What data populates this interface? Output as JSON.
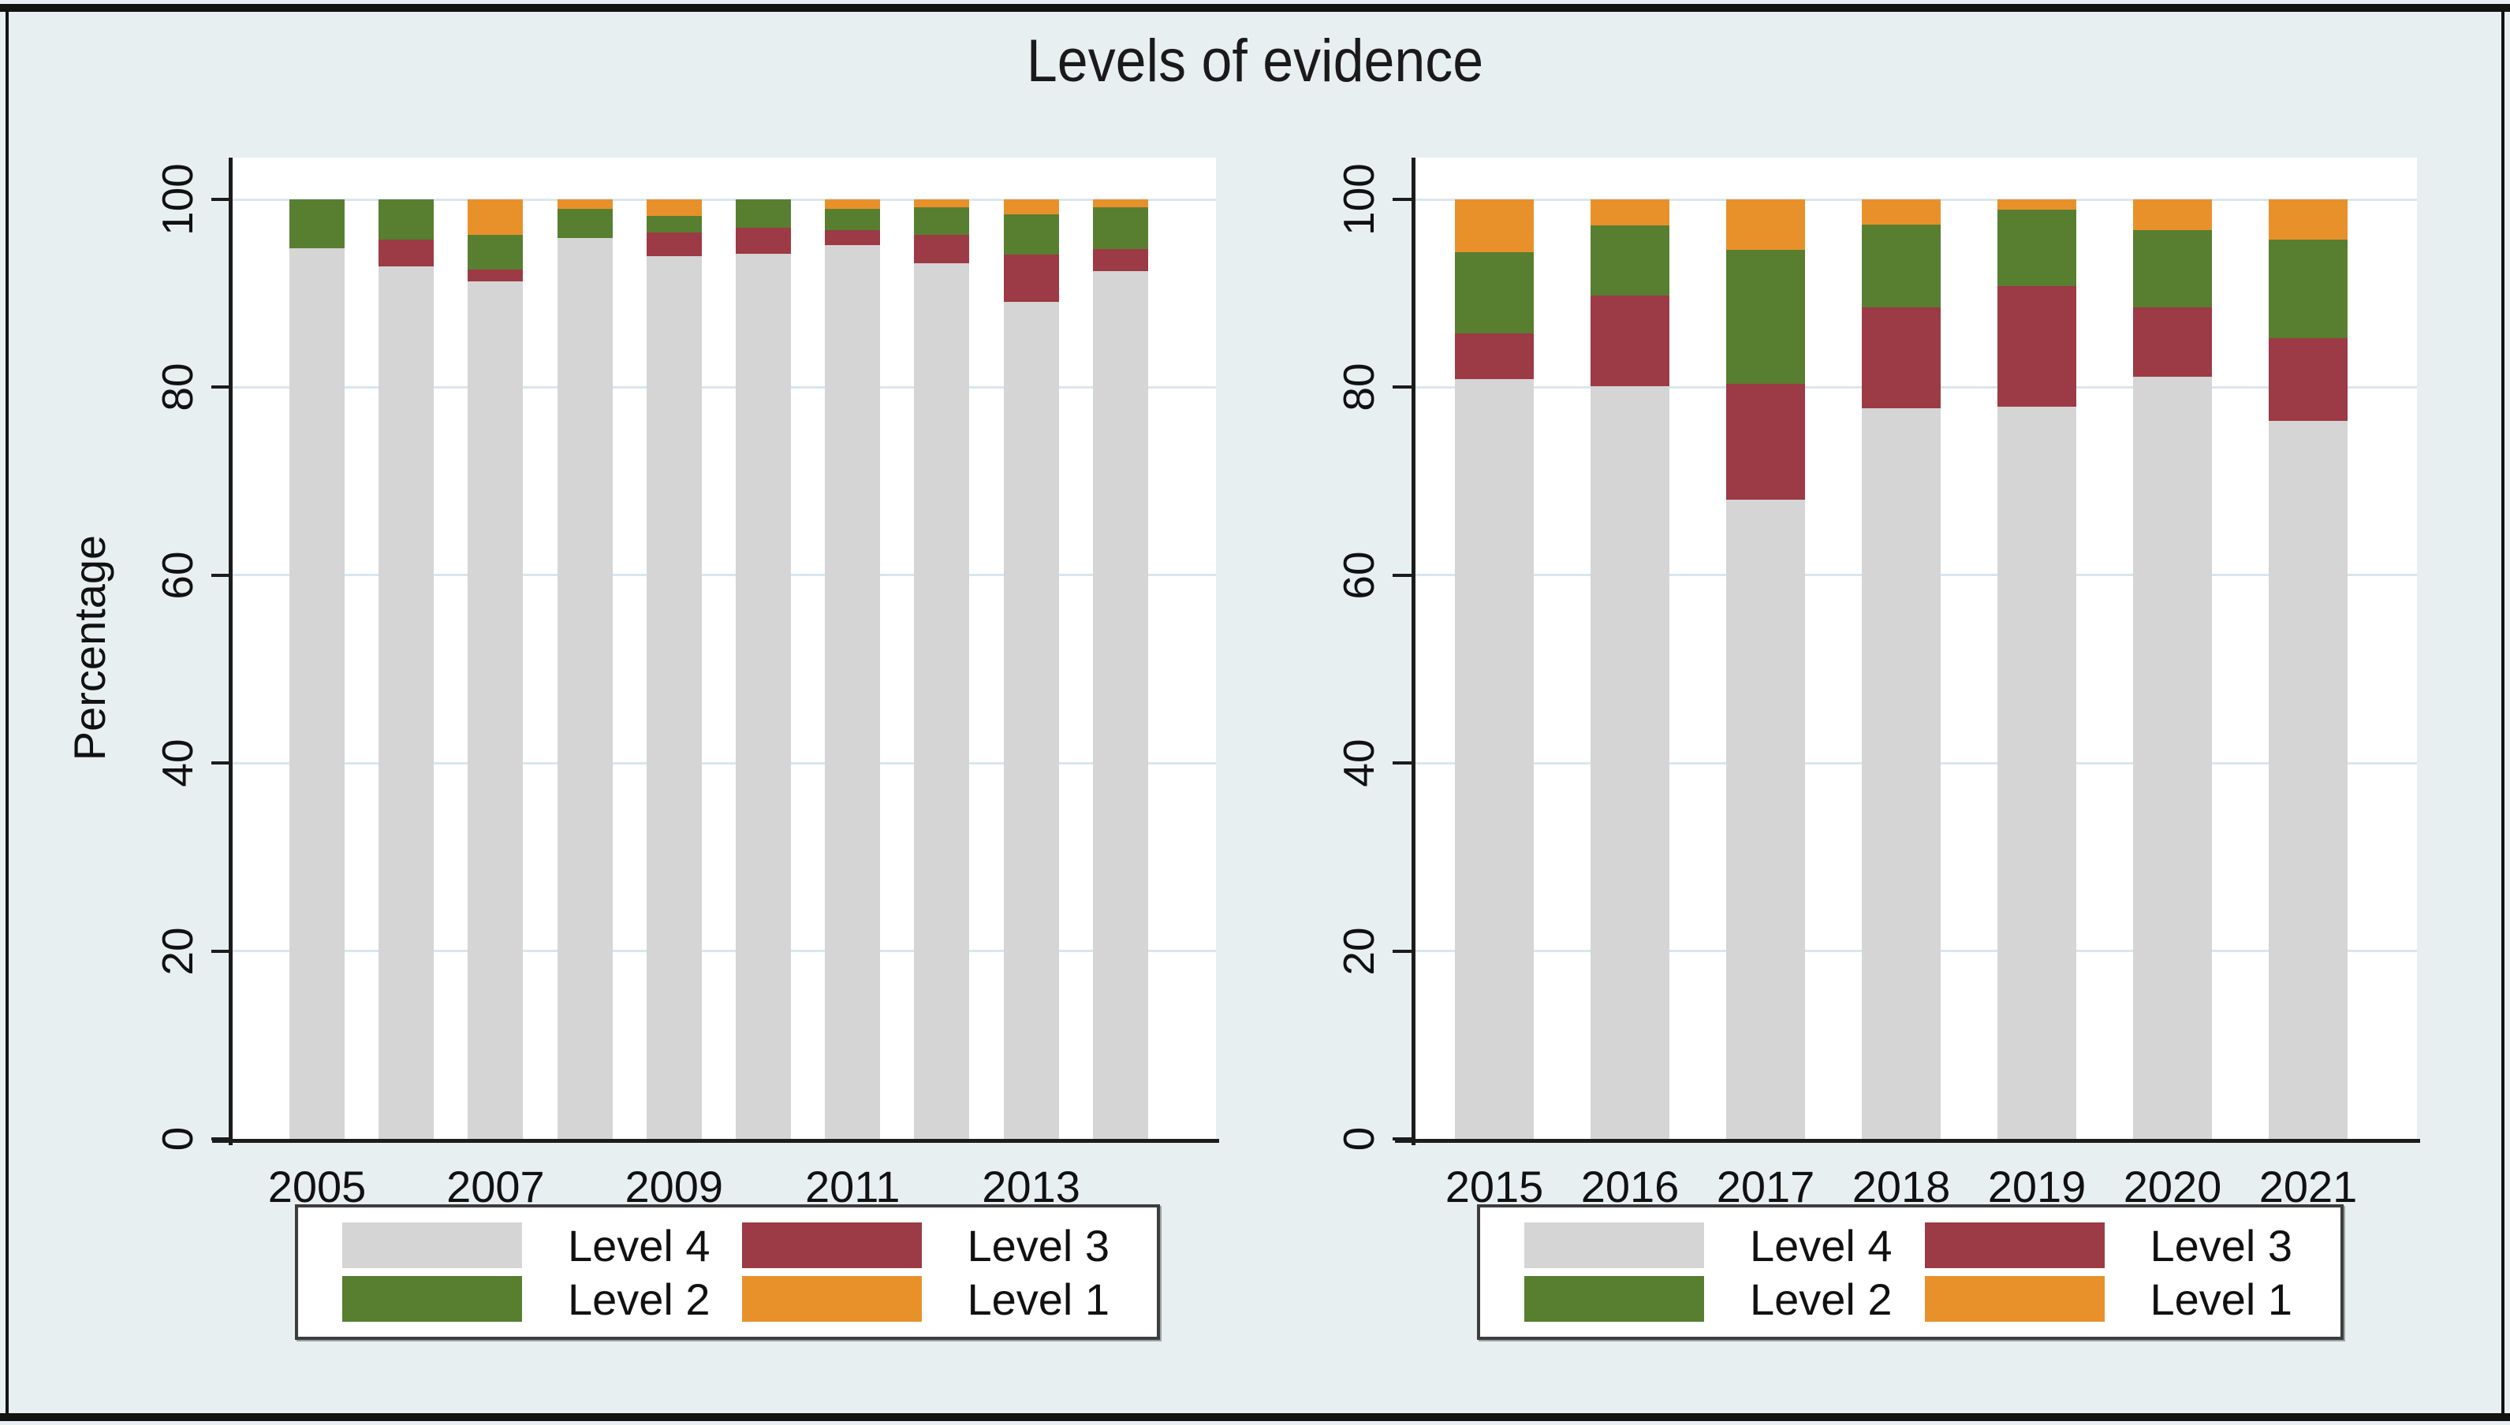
{
  "title": "Levels of evidence",
  "ylabel": "Percentage",
  "colors": {
    "figure_bg": "#e8eff1",
    "plot_bg": "#ffffff",
    "grid": "#d8e7ee",
    "axis": "#1c1c1c",
    "frame": "#131313",
    "level4": "#d5d5d5",
    "level3": "#9c3a45",
    "level2": "#587e30",
    "level1": "#e8912b",
    "legend_bg": "#ffffff",
    "legend_border": "#3d3d3d"
  },
  "legend": {
    "items": [
      {
        "label": "Level 4",
        "color_key": "level4"
      },
      {
        "label": "Level 3",
        "color_key": "level3"
      },
      {
        "label": "Level 2",
        "color_key": "level2"
      },
      {
        "label": "Level 1",
        "color_key": "level1"
      }
    ]
  },
  "chart_data": [
    {
      "type": "bar",
      "stacked": true,
      "panel": "left",
      "title": "Levels of evidence",
      "ylabel": "Percentage",
      "xlabel": "",
      "ylim": [
        0,
        100
      ],
      "yticks": [
        0,
        20,
        40,
        60,
        80,
        100
      ],
      "grid": true,
      "legend_position": "below",
      "categories": [
        "2005",
        "2006",
        "2007",
        "2008",
        "2009",
        "2010",
        "2011",
        "2012",
        "2013",
        "2014"
      ],
      "x_tick_labels_shown": [
        "2005",
        "2007",
        "2009",
        "2011",
        "2013"
      ],
      "series": [
        {
          "name": "Level 4",
          "color_key": "level4",
          "values": [
            94.8,
            92.9,
            91.3,
            95.9,
            94.0,
            94.2,
            95.1,
            93.2,
            89.1,
            92.4
          ]
        },
        {
          "name": "Level 3",
          "color_key": "level3",
          "values": [
            0.0,
            2.8,
            1.2,
            0.0,
            2.5,
            2.8,
            1.6,
            3.0,
            5.0,
            2.3
          ]
        },
        {
          "name": "Level 2",
          "color_key": "level2",
          "values": [
            5.2,
            4.3,
            3.7,
            3.1,
            1.7,
            3.0,
            2.3,
            3.0,
            4.3,
            4.5
          ]
        },
        {
          "name": "Level 1",
          "color_key": "level1",
          "values": [
            0.0,
            0.0,
            3.8,
            1.0,
            1.8,
            0.0,
            1.0,
            0.8,
            1.6,
            0.8
          ]
        }
      ]
    },
    {
      "type": "bar",
      "stacked": true,
      "panel": "right",
      "title": "Levels of evidence",
      "ylabel": "",
      "xlabel": "",
      "ylim": [
        0,
        100
      ],
      "yticks": [
        0,
        20,
        40,
        60,
        80,
        100
      ],
      "grid": true,
      "legend_position": "below",
      "categories": [
        "2015",
        "2016",
        "2017",
        "2018",
        "2019",
        "2020",
        "2021"
      ],
      "x_tick_labels_shown": [
        "2015",
        "2016",
        "2017",
        "2018",
        "2019",
        "2020",
        "2021"
      ],
      "series": [
        {
          "name": "Level 4",
          "color_key": "level4",
          "values": [
            80.9,
            80.1,
            68.0,
            77.8,
            77.9,
            81.1,
            76.4
          ]
        },
        {
          "name": "Level 3",
          "color_key": "level3",
          "values": [
            4.8,
            9.7,
            12.4,
            10.7,
            12.9,
            7.4,
            8.8
          ]
        },
        {
          "name": "Level 2",
          "color_key": "level2",
          "values": [
            8.7,
            7.4,
            14.2,
            8.8,
            8.1,
            8.2,
            10.5
          ]
        },
        {
          "name": "Level 1",
          "color_key": "level1",
          "values": [
            5.6,
            2.8,
            5.4,
            2.7,
            1.1,
            3.3,
            4.3
          ]
        }
      ]
    }
  ]
}
